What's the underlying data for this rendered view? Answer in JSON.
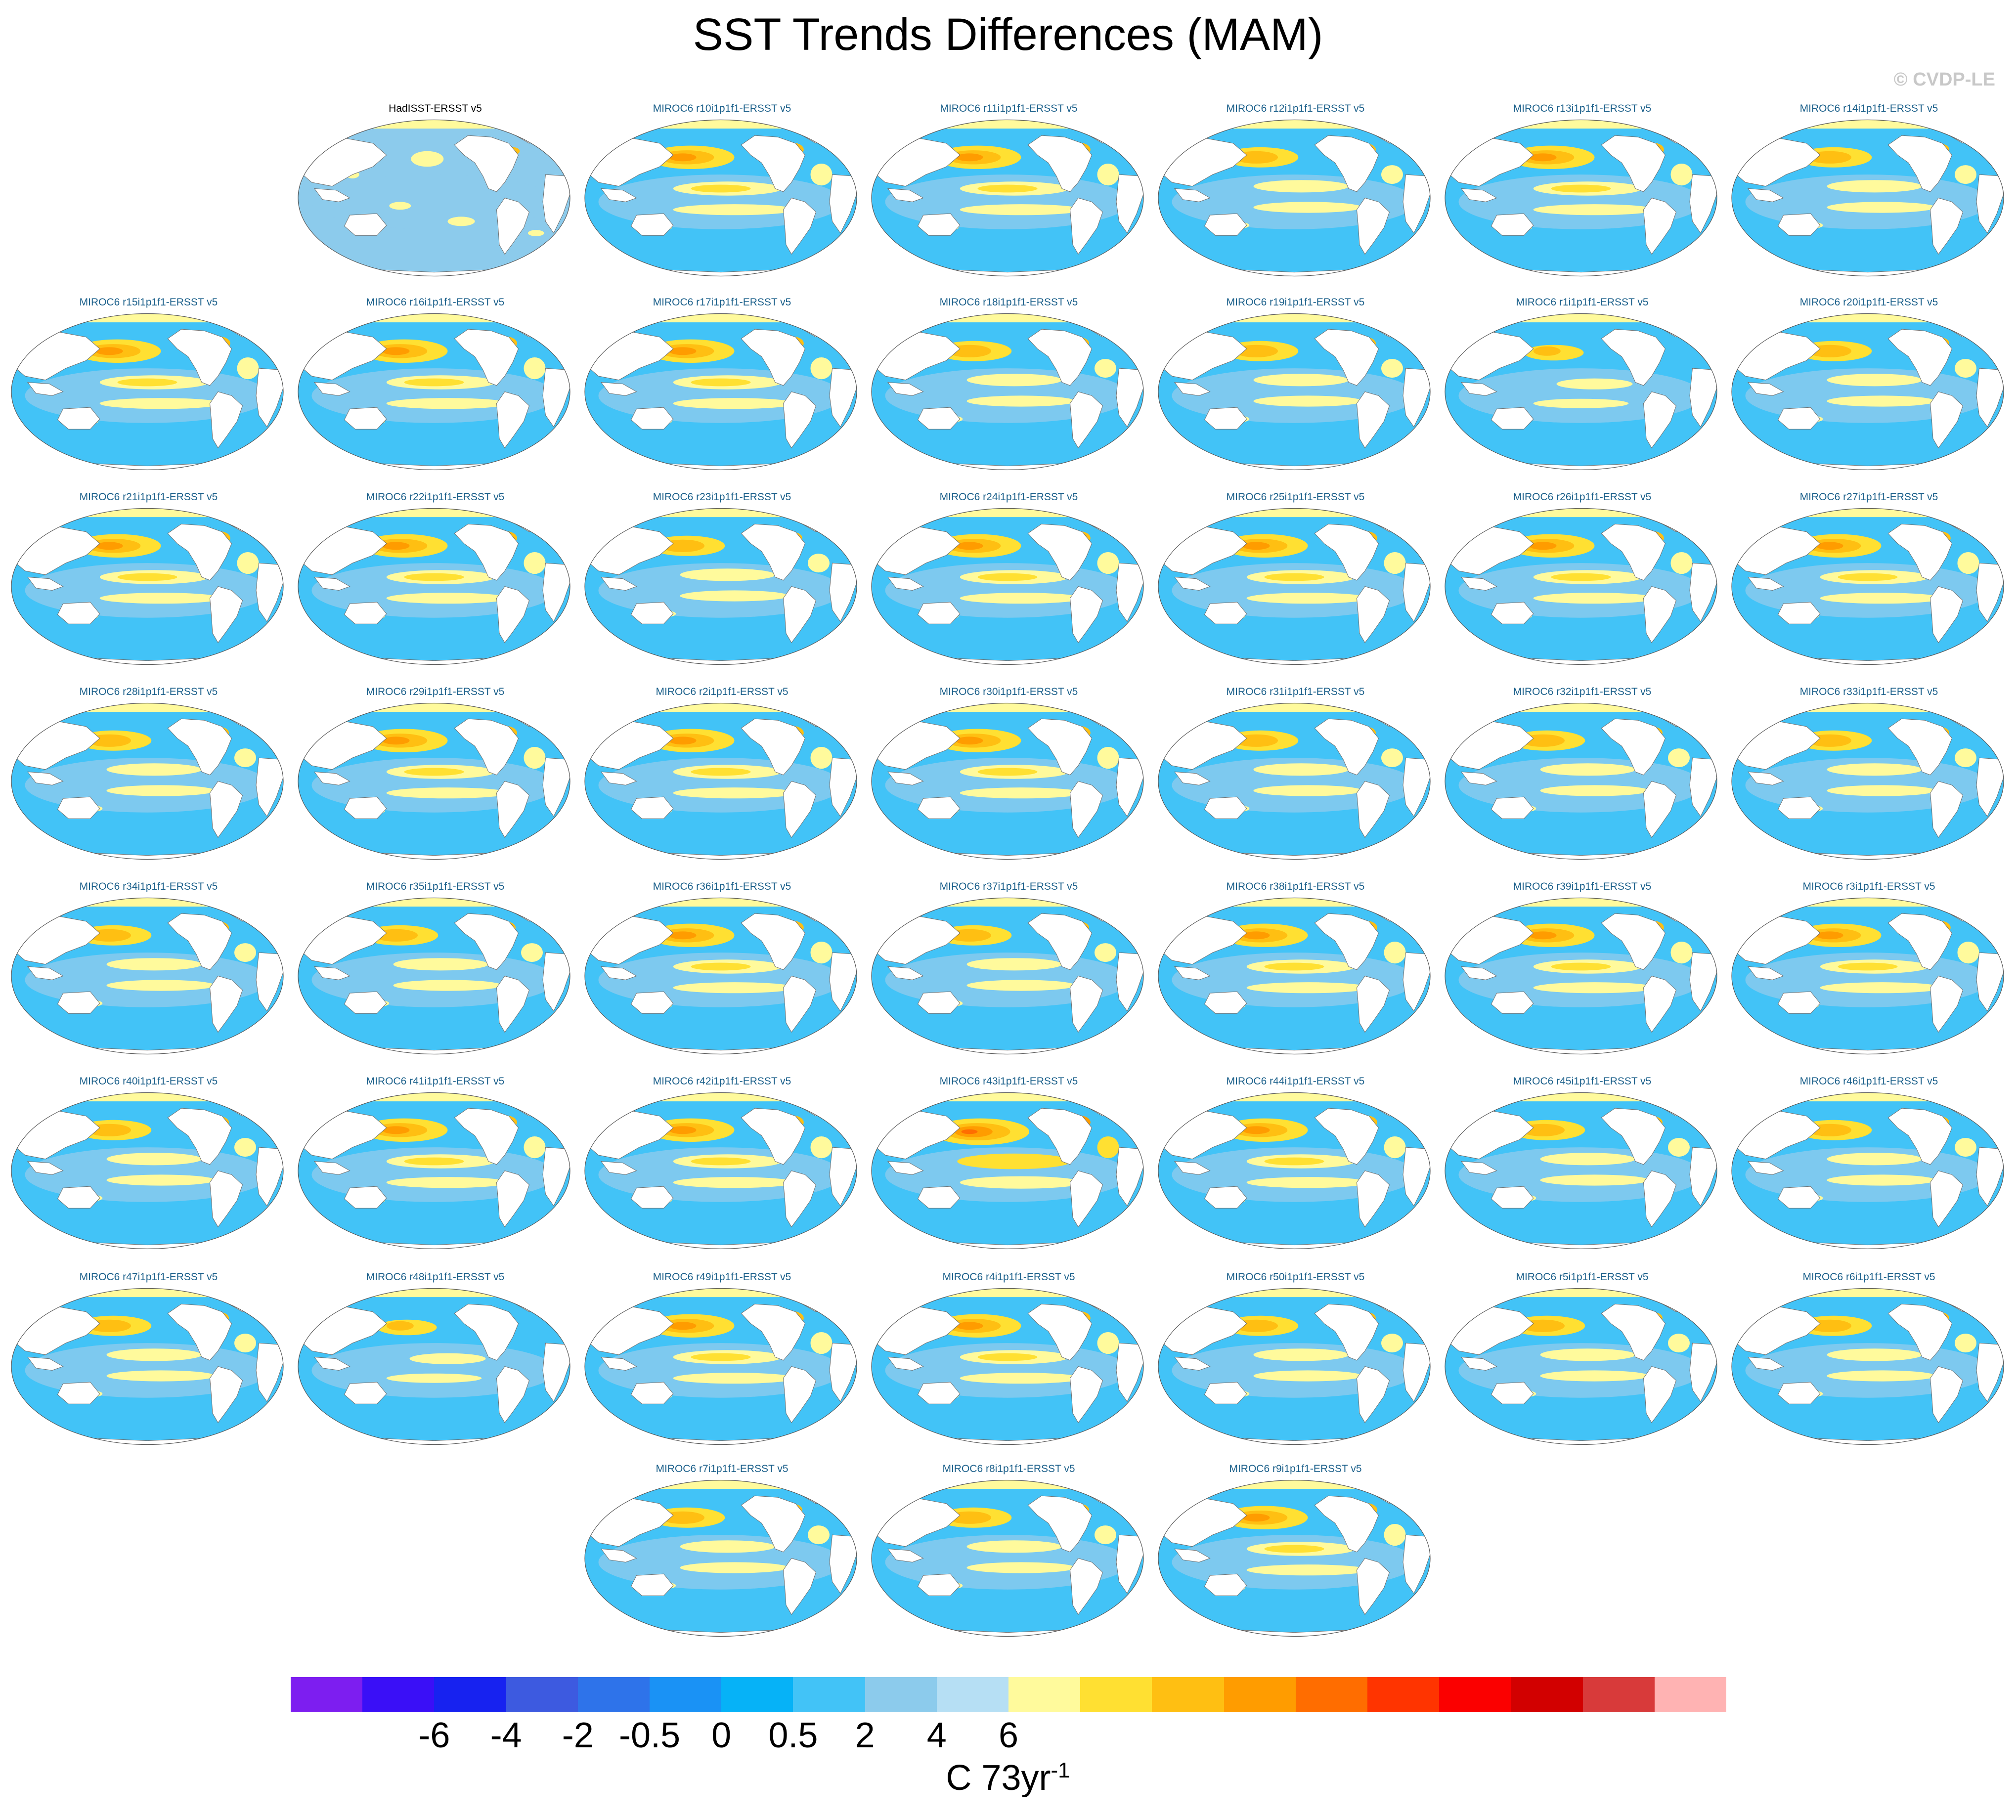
{
  "title": "SST Trends Differences (MAM)",
  "watermark": "© CVDP-LE",
  "icons": {
    "map-projection": "robinson-world-map"
  },
  "chart_data": {
    "type": "heatmap",
    "title": "SST Trends Differences (MAM)",
    "projection": "Robinson (Pacific-centered)",
    "variable": "SST trend difference",
    "units_main": "C 73yr",
    "units_exponent": "-1",
    "colorbar": {
      "ticks": [
        "-6",
        "-4",
        "-2",
        "-0.5",
        "0",
        "0.5",
        "2",
        "4",
        "6"
      ],
      "colors": [
        "#7d1ef0",
        "#3a0ff7",
        "#1722f0",
        "#3d5ae0",
        "#2e73ea",
        "#1a92f5",
        "#06b2f7",
        "#42c3f7",
        "#8ccbec",
        "#b6dff4",
        "#fffa9c",
        "#ffe032",
        "#ffbf12",
        "#ff9c00",
        "#ff6d00",
        "#ff3400",
        "#fb0000",
        "#d20000",
        "#d83a3a",
        "#ffb3b3"
      ]
    },
    "panels": [
      {
        "label": "HadISST-ERSST v5",
        "type": "observation",
        "pattern": "obs"
      },
      {
        "label": "MIROC6 r10i1p1f1-ERSST v5",
        "pattern": "strong"
      },
      {
        "label": "MIROC6 r11i1p1f1-ERSST v5",
        "pattern": "strong"
      },
      {
        "label": "MIROC6 r12i1p1f1-ERSST v5",
        "pattern": "moderate"
      },
      {
        "label": "MIROC6 r13i1p1f1-ERSST v5",
        "pattern": "strong"
      },
      {
        "label": "MIROC6 r14i1p1f1-ERSST v5",
        "pattern": "moderate"
      },
      {
        "label": "MIROC6 r15i1p1f1-ERSST v5",
        "pattern": "strong"
      },
      {
        "label": "MIROC6 r16i1p1f1-ERSST v5",
        "pattern": "strong"
      },
      {
        "label": "MIROC6 r17i1p1f1-ERSST v5",
        "pattern": "strong"
      },
      {
        "label": "MIROC6 r18i1p1f1-ERSST v5",
        "pattern": "moderate"
      },
      {
        "label": "MIROC6 r19i1p1f1-ERSST v5",
        "pattern": "moderate"
      },
      {
        "label": "MIROC6 r1i1p1f1-ERSST v5",
        "pattern": "weak"
      },
      {
        "label": "MIROC6 r20i1p1f1-ERSST v5",
        "pattern": "moderate"
      },
      {
        "label": "MIROC6 r21i1p1f1-ERSST v5",
        "pattern": "strong"
      },
      {
        "label": "MIROC6 r22i1p1f1-ERSST v5",
        "pattern": "strong"
      },
      {
        "label": "MIROC6 r23i1p1f1-ERSST v5",
        "pattern": "moderate"
      },
      {
        "label": "MIROC6 r24i1p1f1-ERSST v5",
        "pattern": "strong"
      },
      {
        "label": "MIROC6 r25i1p1f1-ERSST v5",
        "pattern": "strong"
      },
      {
        "label": "MIROC6 r26i1p1f1-ERSST v5",
        "pattern": "strong"
      },
      {
        "label": "MIROC6 r27i1p1f1-ERSST v5",
        "pattern": "strong"
      },
      {
        "label": "MIROC6 r28i1p1f1-ERSST v5",
        "pattern": "moderate"
      },
      {
        "label": "MIROC6 r29i1p1f1-ERSST v5",
        "pattern": "strong"
      },
      {
        "label": "MIROC6 r2i1p1f1-ERSST v5",
        "pattern": "strong"
      },
      {
        "label": "MIROC6 r30i1p1f1-ERSST v5",
        "pattern": "strong"
      },
      {
        "label": "MIROC6 r31i1p1f1-ERSST v5",
        "pattern": "moderate"
      },
      {
        "label": "MIROC6 r32i1p1f1-ERSST v5",
        "pattern": "moderate"
      },
      {
        "label": "MIROC6 r33i1p1f1-ERSST v5",
        "pattern": "moderate"
      },
      {
        "label": "MIROC6 r34i1p1f1-ERSST v5",
        "pattern": "moderate"
      },
      {
        "label": "MIROC6 r35i1p1f1-ERSST v5",
        "pattern": "moderate"
      },
      {
        "label": "MIROC6 r36i1p1f1-ERSST v5",
        "pattern": "strong"
      },
      {
        "label": "MIROC6 r37i1p1f1-ERSST v5",
        "pattern": "moderate"
      },
      {
        "label": "MIROC6 r38i1p1f1-ERSST v5",
        "pattern": "strong"
      },
      {
        "label": "MIROC6 r39i1p1f1-ERSST v5",
        "pattern": "strong"
      },
      {
        "label": "MIROC6 r3i1p1f1-ERSST v5",
        "pattern": "strong"
      },
      {
        "label": "MIROC6 r40i1p1f1-ERSST v5",
        "pattern": "moderate"
      },
      {
        "label": "MIROC6 r41i1p1f1-ERSST v5",
        "pattern": "strong"
      },
      {
        "label": "MIROC6 r42i1p1f1-ERSST v5",
        "pattern": "strong"
      },
      {
        "label": "MIROC6 r43i1p1f1-ERSST v5",
        "pattern": "very-strong"
      },
      {
        "label": "MIROC6 r44i1p1f1-ERSST v5",
        "pattern": "strong"
      },
      {
        "label": "MIROC6 r45i1p1f1-ERSST v5",
        "pattern": "moderate"
      },
      {
        "label": "MIROC6 r46i1p1f1-ERSST v5",
        "pattern": "moderate"
      },
      {
        "label": "MIROC6 r47i1p1f1-ERSST v5",
        "pattern": "moderate"
      },
      {
        "label": "MIROC6 r48i1p1f1-ERSST v5",
        "pattern": "weak"
      },
      {
        "label": "MIROC6 r49i1p1f1-ERSST v5",
        "pattern": "strong"
      },
      {
        "label": "MIROC6 r4i1p1f1-ERSST v5",
        "pattern": "strong"
      },
      {
        "label": "MIROC6 r50i1p1f1-ERSST v5",
        "pattern": "moderate"
      },
      {
        "label": "MIROC6 r5i1p1f1-ERSST v5",
        "pattern": "moderate"
      },
      {
        "label": "MIROC6 r6i1p1f1-ERSST v5",
        "pattern": "moderate"
      },
      {
        "label": "MIROC6 r7i1p1f1-ERSST v5",
        "pattern": "moderate"
      },
      {
        "label": "MIROC6 r8i1p1f1-ERSST v5",
        "pattern": "moderate"
      },
      {
        "label": "MIROC6 r9i1p1f1-ERSST v5",
        "pattern": "strong"
      }
    ]
  }
}
